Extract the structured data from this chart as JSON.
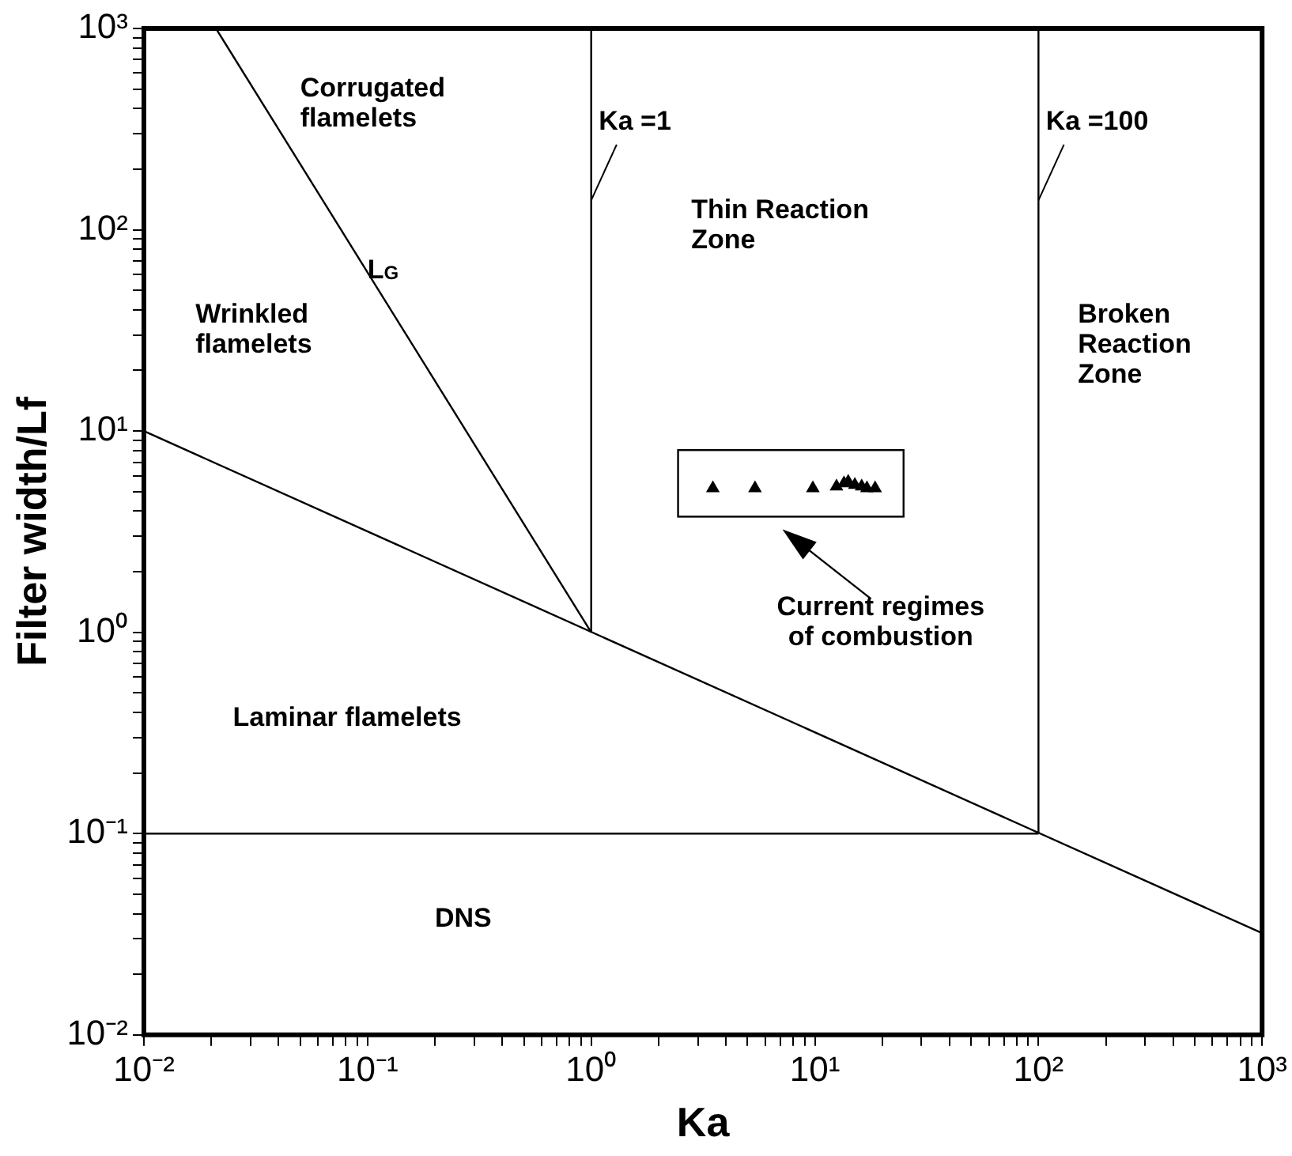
{
  "chart_data": {
    "type": "line",
    "xlabel": "Ka",
    "ylabel": "Filter width/Lf",
    "log": "xy",
    "grid": false,
    "xlim": [
      0.01,
      1000
    ],
    "ylim": [
      0.01,
      1000
    ],
    "xticks": [
      {
        "value": 0.01,
        "label": "10⁻²"
      },
      {
        "value": 0.02,
        "label": null
      },
      {
        "value": 0.03,
        "label": null
      },
      {
        "value": 0.04,
        "label": null
      },
      {
        "value": 0.05,
        "label": null
      },
      {
        "value": 0.06,
        "label": null
      },
      {
        "value": 0.07,
        "label": null
      },
      {
        "value": 0.08,
        "label": null
      },
      {
        "value": 0.09,
        "label": null
      },
      {
        "value": 0.1,
        "label": "10⁻¹"
      },
      {
        "value": 0.2,
        "label": null
      },
      {
        "value": 0.3,
        "label": null
      },
      {
        "value": 0.4,
        "label": null
      },
      {
        "value": 0.5,
        "label": null
      },
      {
        "value": 0.6,
        "label": null
      },
      {
        "value": 0.7,
        "label": null
      },
      {
        "value": 0.8,
        "label": null
      },
      {
        "value": 0.9,
        "label": null
      },
      {
        "value": 1,
        "label": "10⁰"
      },
      {
        "value": 2,
        "label": null
      },
      {
        "value": 3,
        "label": null
      },
      {
        "value": 4,
        "label": null
      },
      {
        "value": 5,
        "label": null
      },
      {
        "value": 6,
        "label": null
      },
      {
        "value": 7,
        "label": null
      },
      {
        "value": 8,
        "label": null
      },
      {
        "value": 9,
        "label": null
      },
      {
        "value": 10,
        "label": "10¹"
      },
      {
        "value": 20,
        "label": null
      },
      {
        "value": 30,
        "label": null
      },
      {
        "value": 40,
        "label": null
      },
      {
        "value": 50,
        "label": null
      },
      {
        "value": 60,
        "label": null
      },
      {
        "value": 70,
        "label": null
      },
      {
        "value": 80,
        "label": null
      },
      {
        "value": 90,
        "label": null
      },
      {
        "value": 100,
        "label": "10²"
      },
      {
        "value": 200,
        "label": null
      },
      {
        "value": 300,
        "label": null
      },
      {
        "value": 400,
        "label": null
      },
      {
        "value": 500,
        "label": null
      },
      {
        "value": 600,
        "label": null
      },
      {
        "value": 700,
        "label": null
      },
      {
        "value": 800,
        "label": null
      },
      {
        "value": 900,
        "label": null
      },
      {
        "value": 1000,
        "label": "10³"
      }
    ],
    "yticks": [
      {
        "value": 0.01,
        "label": "10⁻²"
      },
      {
        "value": 0.02,
        "label": null
      },
      {
        "value": 0.03,
        "label": null
      },
      {
        "value": 0.04,
        "label": null
      },
      {
        "value": 0.05,
        "label": null
      },
      {
        "value": 0.06,
        "label": null
      },
      {
        "value": 0.07,
        "label": null
      },
      {
        "value": 0.08,
        "label": null
      },
      {
        "value": 0.09,
        "label": null
      },
      {
        "value": 0.1,
        "label": "10⁻¹"
      },
      {
        "value": 0.2,
        "label": null
      },
      {
        "value": 0.3,
        "label": null
      },
      {
        "value": 0.4,
        "label": null
      },
      {
        "value": 0.5,
        "label": null
      },
      {
        "value": 0.6,
        "label": null
      },
      {
        "value": 0.7,
        "label": null
      },
      {
        "value": 0.8,
        "label": null
      },
      {
        "value": 0.9,
        "label": null
      },
      {
        "value": 1,
        "label": "10⁰"
      },
      {
        "value": 2,
        "label": null
      },
      {
        "value": 3,
        "label": null
      },
      {
        "value": 4,
        "label": null
      },
      {
        "value": 5,
        "label": null
      },
      {
        "value": 6,
        "label": null
      },
      {
        "value": 7,
        "label": null
      },
      {
        "value": 8,
        "label": null
      },
      {
        "value": 9,
        "label": null
      },
      {
        "value": 10,
        "label": "10¹"
      },
      {
        "value": 20,
        "label": null
      },
      {
        "value": 30,
        "label": null
      },
      {
        "value": 40,
        "label": null
      },
      {
        "value": 50,
        "label": null
      },
      {
        "value": 60,
        "label": null
      },
      {
        "value": 70,
        "label": null
      },
      {
        "value": 80,
        "label": null
      },
      {
        "value": 90,
        "label": null
      },
      {
        "value": 100,
        "label": "10²"
      },
      {
        "value": 200,
        "label": null
      },
      {
        "value": 300,
        "label": null
      },
      {
        "value": 400,
        "label": null
      },
      {
        "value": 500,
        "label": null
      },
      {
        "value": 600,
        "label": null
      },
      {
        "value": 700,
        "label": null
      },
      {
        "value": 800,
        "label": null
      },
      {
        "value": 900,
        "label": null
      },
      {
        "value": 1000,
        "label": "10³"
      }
    ],
    "series": [
      {
        "name": "L$_{G}$",
        "color": "#000000",
        "x": [
          0.021,
          1
        ],
        "values": [
          1000,
          1
        ]
      },
      {
        "name": "Ka =1",
        "color": "#000000",
        "x": [
          1,
          1
        ],
        "values": [
          1,
          1000
        ]
      },
      {
        "name": "Ka =100",
        "color": "#000000",
        "x": [
          100,
          100
        ],
        "values": [
          0.1,
          1000
        ]
      },
      {
        "color": "#000000",
        "x": [
          0.01,
          1000
        ],
        "values": [
          10,
          0.032
        ]
      },
      {
        "color": "#000000",
        "x": [
          0.01,
          100
        ],
        "values": [
          0.1,
          0.1
        ]
      },
      {
        "type": "scatter",
        "color": "#000000",
        "marker": "triangle",
        "x": [
          3.5,
          5.4,
          9.8,
          12.5,
          13.5,
          14.1,
          15.1,
          16.2,
          17.1,
          18.6
        ],
        "values": [
          5.2,
          5.2,
          5.2,
          5.3,
          5.5,
          5.6,
          5.4,
          5.3,
          5.2,
          5.2
        ]
      }
    ],
    "annotations": [
      "Corrugated flamelets",
      "Wrinkled flamelets",
      "Thin Reaction Zone",
      "Broken Reaction Zone",
      "Laminar flamelets",
      "DNS",
      "Current regimes of combustion"
    ]
  }
}
